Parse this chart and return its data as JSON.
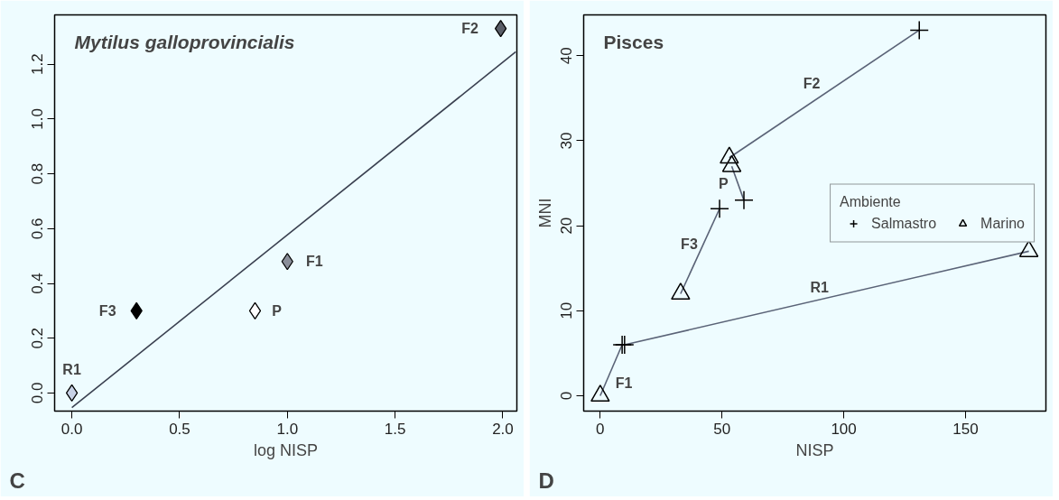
{
  "chart_data": [
    {
      "type": "scatter",
      "title": "Mytilus galloprovincialis",
      "xlabel": "log NISP",
      "xlim": [
        -0.08,
        2.065
      ],
      "ylim": [
        -0.066,
        1.38
      ],
      "xticks": [
        {
          "value": 0,
          "label": "0.0"
        },
        {
          "value": 0.5,
          "label": "0.5"
        },
        {
          "value": 1,
          "label": "1.0"
        },
        {
          "value": 1.5,
          "label": "1.5"
        },
        {
          "value": 2,
          "label": "2.0"
        }
      ],
      "yticks": [
        {
          "value": 0,
          "label": "0.0"
        },
        {
          "value": 0.2,
          "label": "0.2"
        },
        {
          "value": 0.4,
          "label": "0.4"
        },
        {
          "value": 0.6,
          "label": "0.6"
        },
        {
          "value": 0.8,
          "label": "0.8"
        },
        {
          "value": 1,
          "label": "1.0"
        },
        {
          "value": 1.2,
          "label": "1.2"
        }
      ],
      "grid": false,
      "legend": false,
      "series": [
        {
          "type": "line",
          "color": "#3a4050",
          "x": [
            0,
            2.06
          ],
          "values": [
            -0.053,
            1.245
          ],
          "marker": "none"
        },
        {
          "type": "scatter",
          "marker": "diamond",
          "x": [
            0,
            0.3,
            0.85,
            1.0,
            1.99
          ],
          "values": [
            0,
            0.3,
            0.3,
            0.48,
            1.33
          ],
          "colors": [
            "#c8d2e6",
            "#000000",
            "#ffffff",
            "#8a8e99",
            "#5a5e68"
          ]
        }
      ],
      "annotations": [
        {
          "text": "R1",
          "x": 0,
          "y": 0
        },
        {
          "text": "F3",
          "x": 0.3,
          "y": 0.3
        },
        {
          "text": "P",
          "x": 0.85,
          "y": 0.3
        },
        {
          "text": "F1",
          "x": 1.0,
          "y": 0.48
        },
        {
          "text": "F2",
          "x": 1.99,
          "y": 1.33
        },
        "C"
      ]
    },
    {
      "type": "scatter",
      "title": "Pisces",
      "xlabel": "NISP",
      "ylabel": "MNI",
      "legend_title": "Ambiente",
      "xlim": [
        -6.8,
        183
      ],
      "ylim": [
        -1.8,
        44.8
      ],
      "xticks": [
        0,
        50,
        100,
        150
      ],
      "yticks": [
        0,
        10,
        20,
        30,
        40
      ],
      "grid": false,
      "legend": "right",
      "series": [
        {
          "type": "line",
          "color": "#5a6377",
          "x": [
            0,
            9
          ],
          "values": [
            0,
            6
          ],
          "marker": "none"
        },
        {
          "type": "line",
          "color": "#5a6377",
          "x": [
            10,
            176
          ],
          "values": [
            6,
            17
          ],
          "marker": "none"
        },
        {
          "type": "line",
          "color": "#5a6377",
          "x": [
            33,
            49
          ],
          "values": [
            12,
            22
          ],
          "marker": "none"
        },
        {
          "type": "line",
          "color": "#5a6377",
          "x": [
            53,
            131
          ],
          "values": [
            28,
            43
          ],
          "marker": "none"
        },
        {
          "type": "line",
          "color": "#5a6377",
          "x": [
            54,
            59
          ],
          "values": [
            27,
            23
          ],
          "marker": "none"
        },
        {
          "type": "scatter",
          "name": "Salmastro",
          "marker": "cross",
          "color": "#000000",
          "x": [
            9,
            10,
            49,
            131,
            59
          ],
          "values": [
            6,
            6,
            22,
            43,
            23
          ]
        },
        {
          "type": "scatter",
          "name": "Marino",
          "marker": "triangle",
          "color": "#000000",
          "x": [
            0,
            176,
            33,
            53,
            54
          ],
          "values": [
            0,
            17,
            12,
            28,
            27
          ]
        }
      ],
      "annotations": [
        {
          "text": "F1",
          "x": 4.5,
          "y": 3
        },
        {
          "text": "R1",
          "x": 93,
          "y": 11.5
        },
        {
          "text": "F3",
          "x": 41,
          "y": 17
        },
        {
          "text": "P",
          "x": 56.5,
          "y": 25
        },
        {
          "text": "F2",
          "x": 92,
          "y": 35.5
        },
        "D"
      ]
    }
  ]
}
